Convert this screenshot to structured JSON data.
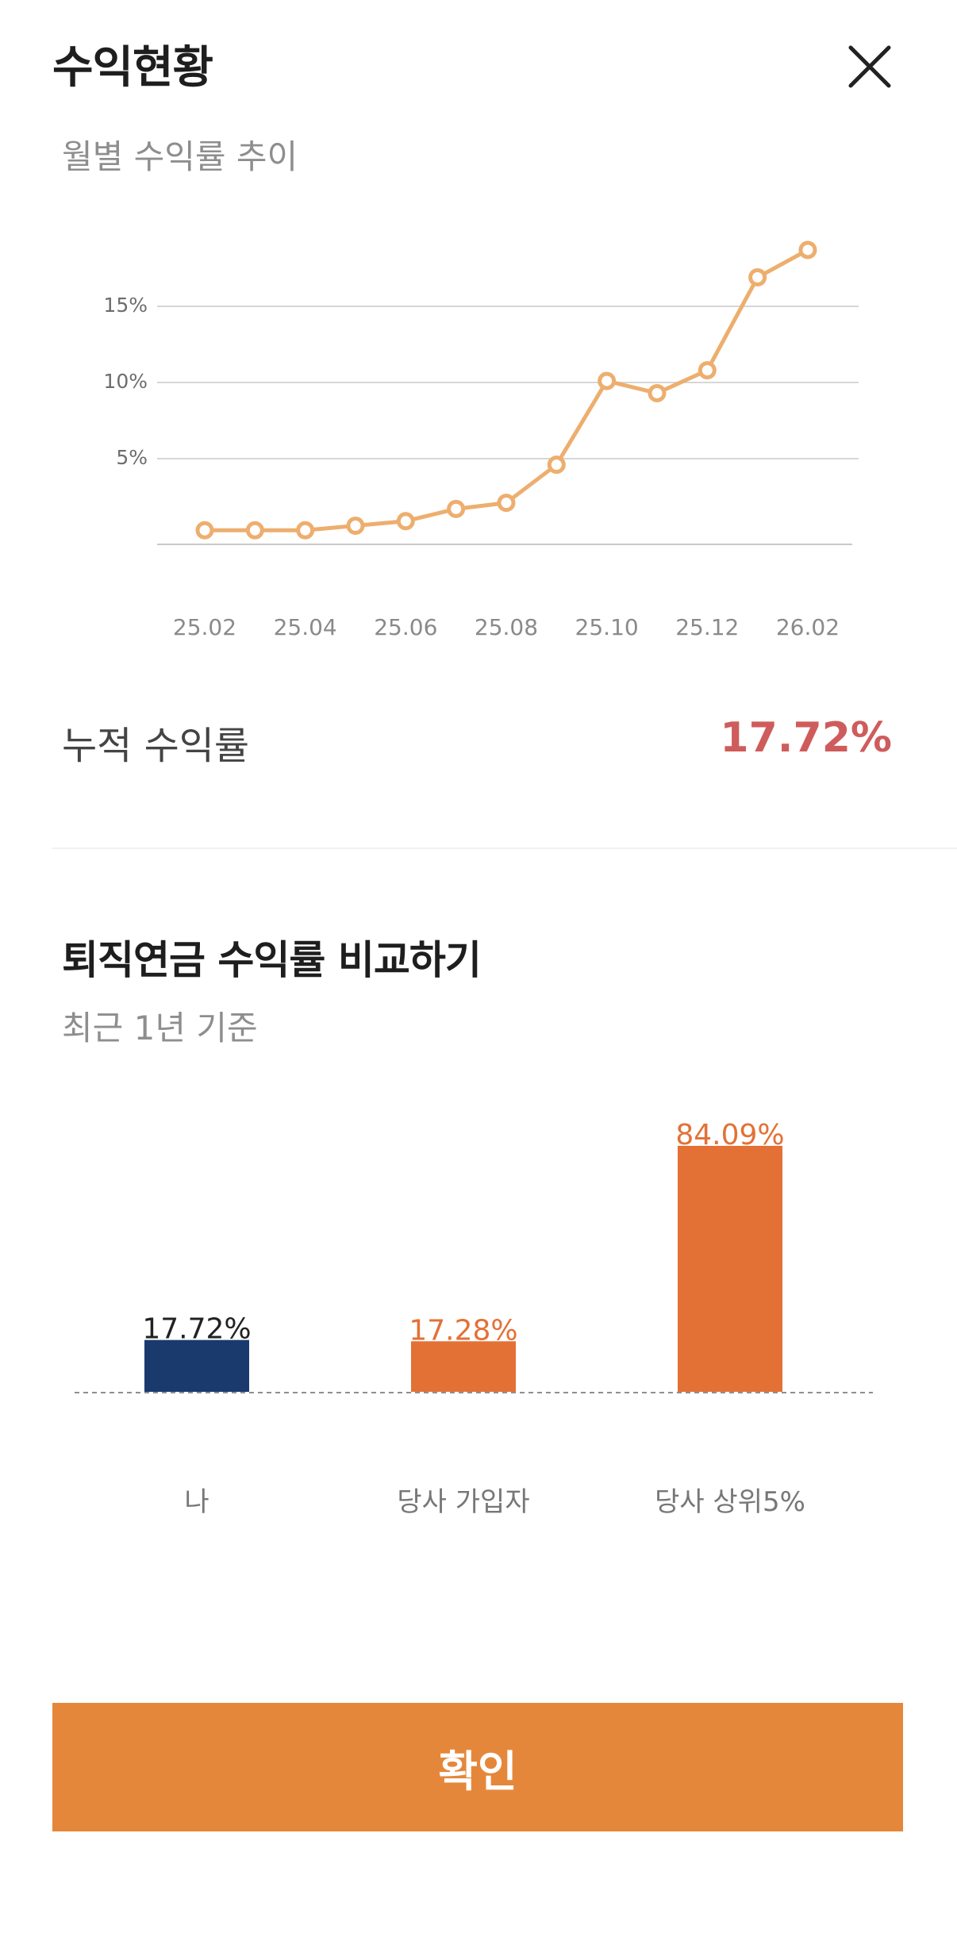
{
  "header": {
    "title": "수익현황",
    "close_icon": "close-icon"
  },
  "monthly": {
    "subtitle": "월별 수익률 추이"
  },
  "cumulative": {
    "label": "누적 수익률",
    "value": "17.72%"
  },
  "compare": {
    "title": "퇴직연금 수익률 비교하기",
    "subtitle": "최근 1년 기준"
  },
  "confirm": {
    "label": "확인"
  },
  "colors": {
    "line": "#edae6e",
    "grid": "#d6d6d6",
    "me_bar": "#1a3a6e",
    "other_bar": "#e37135",
    "confirm_bg": "#e5873a",
    "cum_value": "#cf5c5c"
  },
  "chart_data": [
    {
      "type": "line",
      "x": [
        "25.02",
        "25.03",
        "25.04",
        "25.05",
        "25.06",
        "25.07",
        "25.08",
        "25.09",
        "25.10",
        "25.11",
        "25.12",
        "26.01",
        "26.02"
      ],
      "x_tick_labels": [
        "25.02",
        "25.04",
        "25.06",
        "25.08",
        "25.10",
        "25.12",
        "26.02"
      ],
      "series": [
        {
          "values": [
            0.3,
            0.3,
            0.3,
            0.6,
            0.9,
            1.7,
            2.1,
            4.6,
            10.1,
            9.3,
            10.8,
            16.9,
            18.7
          ]
        }
      ],
      "y_ticks": [
        5,
        10,
        15
      ],
      "y_tick_labels": [
        "5%",
        "10%",
        "15%"
      ],
      "ylim": [
        0,
        18.7
      ],
      "grid": true,
      "title": "",
      "xlabel": "",
      "ylabel": ""
    },
    {
      "type": "bar",
      "categories": [
        "나",
        "당사 가입자",
        "당사 상위5%"
      ],
      "values": [
        17.72,
        17.28,
        84.09
      ],
      "value_labels": [
        "17.72%",
        "17.28%",
        "84.09%"
      ],
      "ylim": [
        0,
        84.09
      ],
      "title": "",
      "xlabel": "",
      "ylabel": ""
    }
  ]
}
